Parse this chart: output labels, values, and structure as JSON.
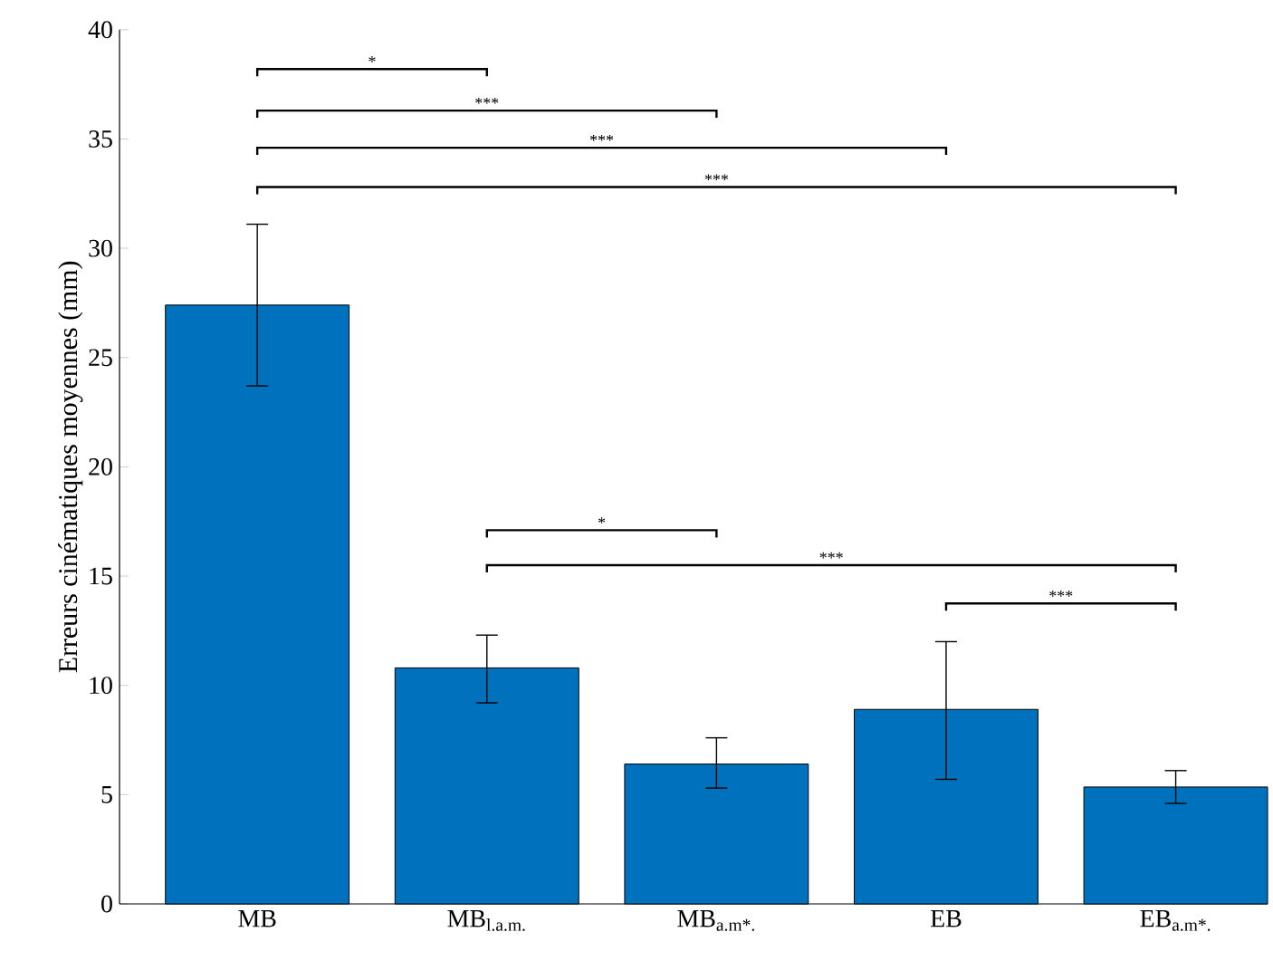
{
  "chart_data": {
    "type": "bar",
    "ylabel": "Erreurs cinématiques moyennes (mm)",
    "categories": [
      "MB",
      "MB$_{l.a.m.}$",
      "MB$_{a.m*.}$",
      "EB",
      "EB$_{a.m*.}$"
    ],
    "values": [
      27.4,
      10.8,
      6.4,
      8.9,
      5.35
    ],
    "errors": [
      [
        23.7,
        31.1
      ],
      [
        9.2,
        12.3
      ],
      [
        5.3,
        7.6
      ],
      [
        5.7,
        12.0
      ],
      [
        4.6,
        6.1
      ]
    ],
    "color": "#0072bd",
    "ylim": [
      0,
      40
    ],
    "yticks": [
      0,
      5,
      10,
      15,
      20,
      25,
      30,
      35,
      40
    ],
    "annotations": [
      "*",
      "***",
      "***",
      "***",
      "*",
      "***",
      "***"
    ]
  }
}
